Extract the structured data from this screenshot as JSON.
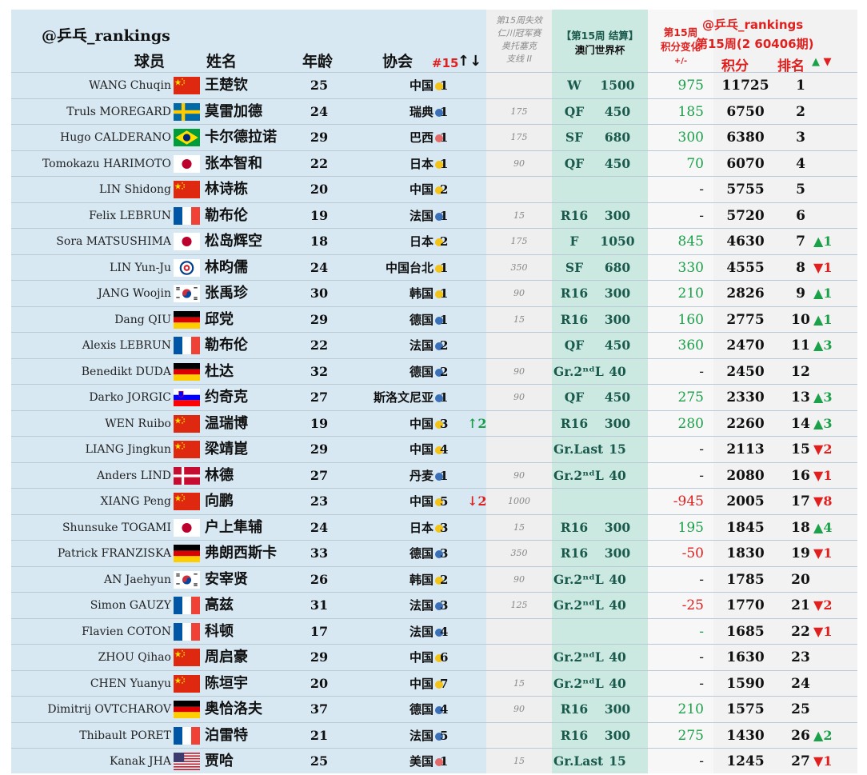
{
  "handle": "@乒乓_rankings",
  "headers": {
    "player": "球员",
    "name": "姓名",
    "age": "年龄",
    "assoc": "协会",
    "nat_rank": "#15",
    "arrows": "↑↓",
    "lost_line1": "第15周失效",
    "lost_line2": "仁川冠军赛",
    "lost_line3": "奥托塞克",
    "lost_line4": "支线 II",
    "macau_line1": "【第15周 结算】",
    "macau_line2": "澳门世界杯",
    "change_line1": "第15周",
    "change_line2": "积分变化",
    "change_line3": "+/-",
    "week_handle": "@乒乓_rankings",
    "week_label": "第15周(2 60406期)",
    "points": "积分",
    "rank": "排名",
    "rank_arrows_up": "▲",
    "rank_arrows_dn": "▼"
  },
  "colors": {
    "dot_yellow": "#f3c316",
    "dot_blue": "#3b6fb6",
    "dot_red": "#e26a6a",
    "up": "#1aa14a",
    "down": "#e0201e"
  },
  "rows": [
    {
      "en": "WANG Chuqin",
      "flag": "CN",
      "cn": "王楚钦",
      "age": "25",
      "assoc": "中国",
      "dot": "yellow",
      "nat": "1",
      "move": "",
      "move_dir": "",
      "lost": "",
      "res": "W",
      "rpts": "1500",
      "chg": "975",
      "chg_sign": "pos",
      "total": "11725",
      "rank": "1",
      "rchg": "",
      "rdir": ""
    },
    {
      "en": "Truls MOREGARD",
      "flag": "SE",
      "cn": "莫雷加德",
      "age": "24",
      "assoc": "瑞典",
      "dot": "blue",
      "nat": "1",
      "move": "",
      "move_dir": "",
      "lost": "175",
      "res": "QF",
      "rpts": "450",
      "chg": "185",
      "chg_sign": "pos",
      "total": "6750",
      "rank": "2",
      "rchg": "",
      "rdir": ""
    },
    {
      "en": "Hugo CALDERANO",
      "flag": "BR",
      "cn": "卡尔德拉诺",
      "age": "29",
      "assoc": "巴西",
      "dot": "red",
      "nat": "1",
      "move": "",
      "move_dir": "",
      "lost": "175",
      "res": "SF",
      "rpts": "680",
      "chg": "300",
      "chg_sign": "pos",
      "total": "6380",
      "rank": "3",
      "rchg": "",
      "rdir": ""
    },
    {
      "en": "Tomokazu HARIMOTO",
      "flag": "JP",
      "cn": "张本智和",
      "age": "22",
      "assoc": "日本",
      "dot": "yellow",
      "nat": "1",
      "move": "",
      "move_dir": "",
      "lost": "90",
      "res": "QF",
      "rpts": "450",
      "chg": "70",
      "chg_sign": "pos",
      "total": "6070",
      "rank": "4",
      "rchg": "",
      "rdir": ""
    },
    {
      "en": "LIN Shidong",
      "flag": "CN",
      "cn": "林诗栋",
      "age": "20",
      "assoc": "中国",
      "dot": "yellow",
      "nat": "2",
      "move": "",
      "move_dir": "",
      "lost": "",
      "res": "",
      "rpts": "",
      "chg": "-",
      "chg_sign": "",
      "total": "5755",
      "rank": "5",
      "rchg": "",
      "rdir": ""
    },
    {
      "en": "Felix LEBRUN",
      "flag": "FR",
      "cn": "勒布伦",
      "age": "19",
      "assoc": "法国",
      "dot": "blue",
      "nat": "1",
      "move": "",
      "move_dir": "",
      "lost": "15",
      "res": "R16",
      "rpts": "300",
      "chg": "-",
      "chg_sign": "",
      "total": "5720",
      "rank": "6",
      "rchg": "",
      "rdir": ""
    },
    {
      "en": "Sora MATSUSHIMA",
      "flag": "JP",
      "cn": "松岛辉空",
      "age": "18",
      "assoc": "日本",
      "dot": "yellow",
      "nat": "2",
      "move": "",
      "move_dir": "",
      "lost": "175",
      "res": "F",
      "rpts": "1050",
      "chg": "845",
      "chg_sign": "pos",
      "total": "4630",
      "rank": "7",
      "rchg": "1",
      "rdir": "up"
    },
    {
      "en": "LIN Yun-Ju",
      "flag": "TPE",
      "cn": "林昀儒",
      "age": "24",
      "assoc": "中国台北",
      "dot": "yellow",
      "nat": "1",
      "move": "",
      "move_dir": "",
      "lost": "350",
      "res": "SF",
      "rpts": "680",
      "chg": "330",
      "chg_sign": "pos",
      "total": "4555",
      "rank": "8",
      "rchg": "1",
      "rdir": "dn"
    },
    {
      "en": "JANG Woojin",
      "flag": "KR",
      "cn": "张禹珍",
      "age": "30",
      "assoc": "韩国",
      "dot": "yellow",
      "nat": "1",
      "move": "",
      "move_dir": "",
      "lost": "90",
      "res": "R16",
      "rpts": "300",
      "chg": "210",
      "chg_sign": "pos",
      "total": "2826",
      "rank": "9",
      "rchg": "1",
      "rdir": "up"
    },
    {
      "en": "Dang QIU",
      "flag": "DE",
      "cn": "邱党",
      "age": "29",
      "assoc": "德国",
      "dot": "blue",
      "nat": "1",
      "move": "",
      "move_dir": "",
      "lost": "15",
      "res": "R16",
      "rpts": "300",
      "chg": "160",
      "chg_sign": "pos",
      "total": "2775",
      "rank": "10",
      "rchg": "1",
      "rdir": "up"
    },
    {
      "en": "Alexis LEBRUN",
      "flag": "FR",
      "cn": "勒布伦",
      "age": "22",
      "assoc": "法国",
      "dot": "blue",
      "nat": "2",
      "move": "",
      "move_dir": "",
      "lost": "",
      "res": "QF",
      "rpts": "450",
      "chg": "360",
      "chg_sign": "pos",
      "total": "2470",
      "rank": "11",
      "rchg": "3",
      "rdir": "up"
    },
    {
      "en": "Benedikt DUDA",
      "flag": "DE",
      "cn": "杜达",
      "age": "32",
      "assoc": "德国",
      "dot": "blue",
      "nat": "2",
      "move": "",
      "move_dir": "",
      "lost": "90",
      "res": "Gr.2ⁿᵈL",
      "rpts": "40",
      "chg": "-",
      "chg_sign": "",
      "total": "2450",
      "rank": "12",
      "rchg": "",
      "rdir": ""
    },
    {
      "en": "Darko JORGIC",
      "flag": "SI",
      "cn": "约奇克",
      "age": "27",
      "assoc": "斯洛文尼亚",
      "dot": "blue",
      "nat": "1",
      "move": "",
      "move_dir": "",
      "lost": "90",
      "res": "QF",
      "rpts": "450",
      "chg": "275",
      "chg_sign": "pos",
      "total": "2330",
      "rank": "13",
      "rchg": "3",
      "rdir": "up"
    },
    {
      "en": "WEN Ruibo",
      "flag": "CN",
      "cn": "温瑞博",
      "age": "19",
      "assoc": "中国",
      "dot": "yellow",
      "nat": "3",
      "move": "↑2",
      "move_dir": "up",
      "lost": "",
      "res": "R16",
      "rpts": "300",
      "chg": "280",
      "chg_sign": "pos",
      "total": "2260",
      "rank": "14",
      "rchg": "3",
      "rdir": "up"
    },
    {
      "en": "LIANG Jingkun",
      "flag": "CN",
      "cn": "梁靖崑",
      "age": "29",
      "assoc": "中国",
      "dot": "yellow",
      "nat": "4",
      "move": "",
      "move_dir": "",
      "lost": "",
      "res": "Gr.Last",
      "rpts": "15",
      "chg": "-",
      "chg_sign": "",
      "total": "2113",
      "rank": "15",
      "rchg": "2",
      "rdir": "dn"
    },
    {
      "en": "Anders LIND",
      "flag": "DK",
      "cn": "林德",
      "age": "27",
      "assoc": "丹麦",
      "dot": "blue",
      "nat": "1",
      "move": "",
      "move_dir": "",
      "lost": "90",
      "res": "Gr.2ⁿᵈL",
      "rpts": "40",
      "chg": "-",
      "chg_sign": "",
      "total": "2080",
      "rank": "16",
      "rchg": "1",
      "rdir": "dn"
    },
    {
      "en": "XIANG Peng",
      "flag": "CN",
      "cn": "向鹏",
      "age": "23",
      "assoc": "中国",
      "dot": "yellow",
      "nat": "5",
      "move": "↓2",
      "move_dir": "dn",
      "lost": "1000",
      "res": "",
      "rpts": "",
      "chg": "-945",
      "chg_sign": "neg",
      "total": "2005",
      "rank": "17",
      "rchg": "8",
      "rdir": "dn"
    },
    {
      "en": "Shunsuke TOGAMI",
      "flag": "JP",
      "cn": "户上隼辅",
      "age": "24",
      "assoc": "日本",
      "dot": "yellow",
      "nat": "3",
      "move": "",
      "move_dir": "",
      "lost": "15",
      "res": "R16",
      "rpts": "300",
      "chg": "195",
      "chg_sign": "pos",
      "total": "1845",
      "rank": "18",
      "rchg": "4",
      "rdir": "up"
    },
    {
      "en": "Patrick FRANZISKA",
      "flag": "DE",
      "cn": "弗朗西斯卡",
      "age": "33",
      "assoc": "德国",
      "dot": "blue",
      "nat": "3",
      "move": "",
      "move_dir": "",
      "lost": "350",
      "res": "R16",
      "rpts": "300",
      "chg": "-50",
      "chg_sign": "neg",
      "total": "1830",
      "rank": "19",
      "rchg": "1",
      "rdir": "dn"
    },
    {
      "en": "AN Jaehyun",
      "flag": "KR",
      "cn": "安宰贤",
      "age": "26",
      "assoc": "韩国",
      "dot": "yellow",
      "nat": "2",
      "move": "",
      "move_dir": "",
      "lost": "90",
      "res": "Gr.2ⁿᵈL",
      "rpts": "40",
      "chg": "-",
      "chg_sign": "",
      "total": "1785",
      "rank": "20",
      "rchg": "",
      "rdir": ""
    },
    {
      "en": "Simon GAUZY",
      "flag": "FR",
      "cn": "高兹",
      "age": "31",
      "assoc": "法国",
      "dot": "blue",
      "nat": "3",
      "move": "",
      "move_dir": "",
      "lost": "125",
      "res": "Gr.2ⁿᵈL",
      "rpts": "40",
      "chg": "-25",
      "chg_sign": "neg",
      "total": "1770",
      "rank": "21",
      "rchg": "2",
      "rdir": "dn"
    },
    {
      "en": "Flavien COTON",
      "flag": "FR",
      "cn": "科顿",
      "age": "17",
      "assoc": "法国",
      "dot": "blue",
      "nat": "4",
      "move": "",
      "move_dir": "",
      "lost": "",
      "res": "",
      "rpts": "",
      "chg": "-",
      "chg_sign": "pos",
      "total": "1685",
      "rank": "22",
      "rchg": "1",
      "rdir": "dn"
    },
    {
      "en": "ZHOU Qihao",
      "flag": "CN",
      "cn": "周启豪",
      "age": "29",
      "assoc": "中国",
      "dot": "yellow",
      "nat": "6",
      "move": "",
      "move_dir": "",
      "lost": "",
      "res": "Gr.2ⁿᵈL",
      "rpts": "40",
      "chg": "-",
      "chg_sign": "",
      "total": "1630",
      "rank": "23",
      "rchg": "",
      "rdir": ""
    },
    {
      "en": "CHEN Yuanyu",
      "flag": "CN",
      "cn": "陈垣宇",
      "age": "20",
      "assoc": "中国",
      "dot": "yellow",
      "nat": "7",
      "move": "",
      "move_dir": "",
      "lost": "15",
      "res": "Gr.2ⁿᵈL",
      "rpts": "40",
      "chg": "-",
      "chg_sign": "",
      "total": "1590",
      "rank": "24",
      "rchg": "",
      "rdir": ""
    },
    {
      "en": "Dimitrij OVTCHAROV",
      "flag": "DE",
      "cn": "奥恰洛夫",
      "age": "37",
      "assoc": "德国",
      "dot": "blue",
      "nat": "4",
      "move": "",
      "move_dir": "",
      "lost": "90",
      "res": "R16",
      "rpts": "300",
      "chg": "210",
      "chg_sign": "pos",
      "total": "1575",
      "rank": "25",
      "rchg": "",
      "rdir": ""
    },
    {
      "en": "Thibault PORET",
      "flag": "FR",
      "cn": "泊雷特",
      "age": "21",
      "assoc": "法国",
      "dot": "blue",
      "nat": "5",
      "move": "",
      "move_dir": "",
      "lost": "",
      "res": "R16",
      "rpts": "300",
      "chg": "275",
      "chg_sign": "pos",
      "total": "1430",
      "rank": "26",
      "rchg": "2",
      "rdir": "up"
    },
    {
      "en": "Kanak JHA",
      "flag": "US",
      "cn": "贾哈",
      "age": "25",
      "assoc": "美国",
      "dot": "red",
      "nat": "1",
      "move": "",
      "move_dir": "",
      "lost": "15",
      "res": "Gr.Last",
      "rpts": "15",
      "chg": "-",
      "chg_sign": "",
      "total": "1245",
      "rank": "27",
      "rchg": "1",
      "rdir": "dn"
    }
  ]
}
